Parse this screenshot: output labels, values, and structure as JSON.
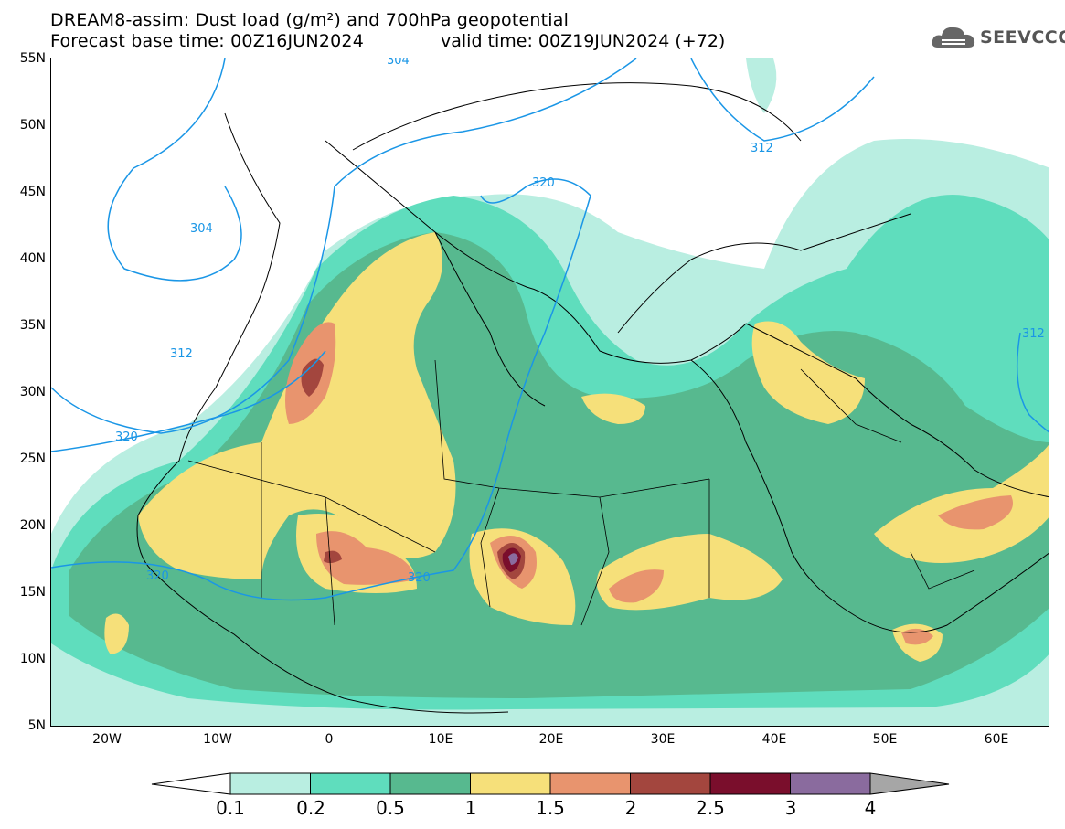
{
  "title_line1": "DREAM8-assim: Dust load (g/m²) and 700hPa geopotential",
  "title_line2": "Forecast base time: 00Z16JUN2024",
  "title_line2b": "valid time: 00Z19JUN2024 (+72)",
  "logo": {
    "text": "SEEVCCC",
    "icon": "cloud-icon"
  },
  "lat_labels": [
    "55N",
    "50N",
    "45N",
    "40N",
    "35N",
    "30N",
    "25N",
    "20N",
    "15N",
    "10N",
    "5N"
  ],
  "lon_labels": [
    "20W",
    "10W",
    "0",
    "10E",
    "20E",
    "30E",
    "40E",
    "50E",
    "60E"
  ],
  "contour_labels": [
    "304",
    "304",
    "312",
    "312",
    "312",
    "320",
    "320",
    "320",
    "320"
  ],
  "colorbar": {
    "levels": [
      "0.1",
      "0.2",
      "0.5",
      "1",
      "1.5",
      "2",
      "2.5",
      "3",
      "4"
    ],
    "colors": [
      "#b9eee1",
      "#5fddbd",
      "#57b98f",
      "#f6e07a",
      "#e8946e",
      "#a3463e",
      "#7a0e2c",
      "#8a6b9e"
    ],
    "over_color": "#a6a6a6",
    "under_color": "#ffffff"
  },
  "colors": {
    "contour": "#1a96e6",
    "coastline": "#000000"
  }
}
